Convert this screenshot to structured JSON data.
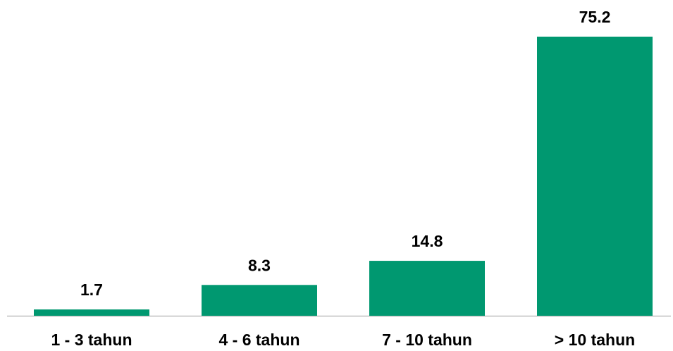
{
  "chart_data": {
    "type": "bar",
    "categories": [
      "1 - 3 tahun",
      "4 - 6 tahun",
      "7 - 10 tahun",
      "> 10 tahun"
    ],
    "values": [
      1.7,
      8.3,
      14.8,
      75.2
    ],
    "color": "#009870"
  }
}
